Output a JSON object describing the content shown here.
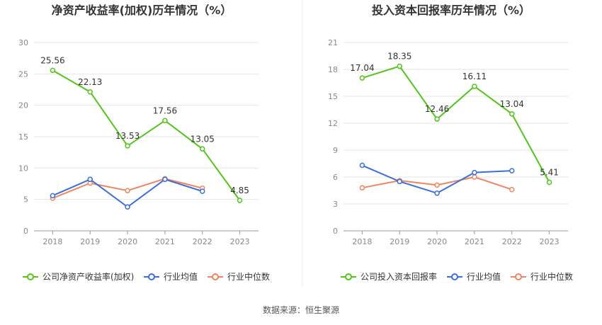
{
  "source_text": "数据来源：恒生聚源",
  "colors": {
    "company": "#52c41a",
    "industry_avg": "#3b6fd8",
    "industry_median": "#f0845e"
  },
  "chart_data": [
    {
      "type": "line",
      "title": "净资产收益率(加权)历年情况（%）",
      "categories": [
        "2018",
        "2019",
        "2020",
        "2021",
        "2022",
        "2023"
      ],
      "ylim": [
        0,
        30
      ],
      "yticks": [
        "0",
        "5",
        "10",
        "15",
        "20",
        "25",
        "30"
      ],
      "grid": true,
      "legend_position": "bottom",
      "series": [
        {
          "name": "公司净资产收益率(加权)",
          "values": [
            25.56,
            22.13,
            13.53,
            17.56,
            13.05,
            4.85
          ],
          "labels": [
            "25.56",
            "22.13",
            "13.53",
            "17.56",
            "13.05",
            "4.85"
          ]
        },
        {
          "name": "行业均值",
          "values": [
            5.6,
            8.2,
            3.8,
            8.2,
            6.3,
            null
          ]
        },
        {
          "name": "行业中位数",
          "values": [
            5.2,
            7.6,
            6.4,
            8.3,
            6.8,
            null
          ]
        }
      ]
    },
    {
      "type": "line",
      "title": "投入资本回报率历年情况（%）",
      "categories": [
        "2018",
        "2019",
        "2020",
        "2021",
        "2022",
        "2023"
      ],
      "ylim": [
        0,
        21
      ],
      "yticks": [
        "0",
        "3",
        "6",
        "9",
        "12",
        "15",
        "18",
        "21"
      ],
      "grid": true,
      "legend_position": "bottom",
      "series": [
        {
          "name": "公司投入资本回报率",
          "values": [
            17.04,
            18.35,
            12.46,
            16.11,
            13.04,
            5.41
          ],
          "labels": [
            "17.04",
            "18.35",
            "12.46",
            "16.11",
            "13.04",
            "5.41"
          ]
        },
        {
          "name": "行业均值",
          "values": [
            7.3,
            5.5,
            4.2,
            6.5,
            6.7,
            null
          ]
        },
        {
          "name": "行业中位数",
          "values": [
            4.8,
            5.6,
            5.1,
            6.0,
            4.6,
            null
          ]
        }
      ]
    }
  ]
}
